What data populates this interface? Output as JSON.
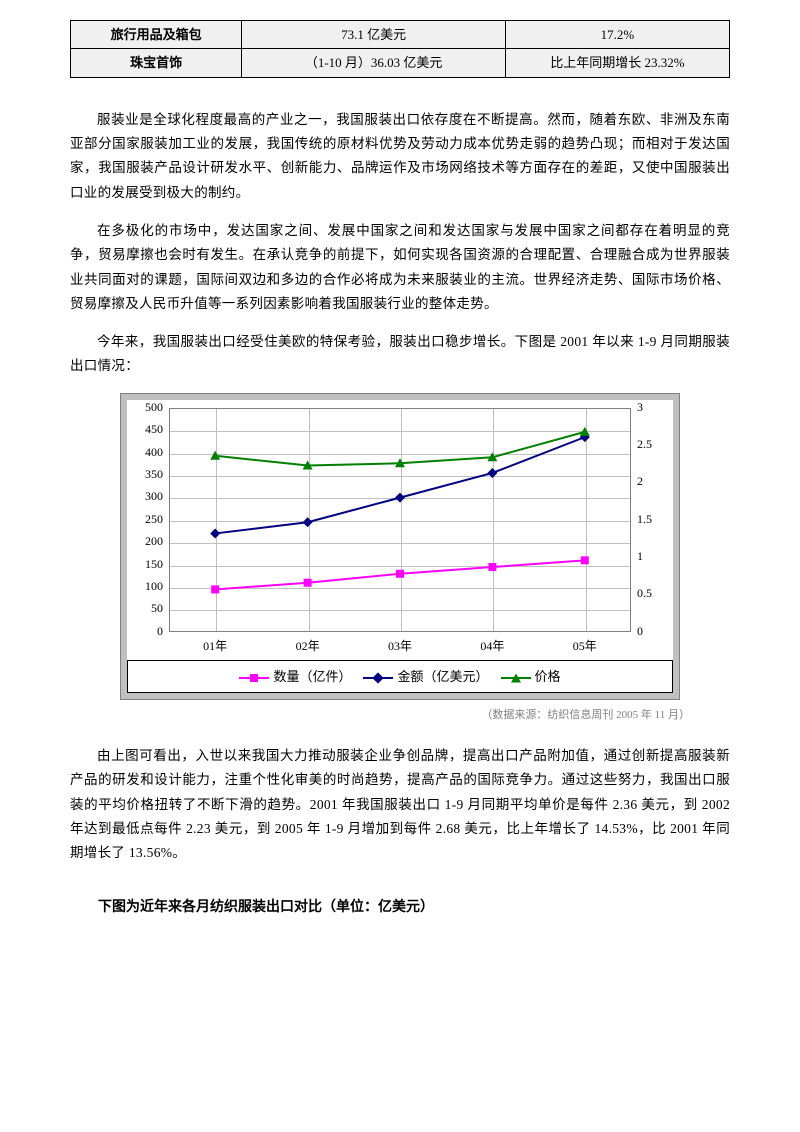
{
  "table": {
    "rows": [
      {
        "c1": "旅行用品及箱包",
        "c2": "73.1 亿美元",
        "c3": "17.2%"
      },
      {
        "c1": "珠宝首饰",
        "c2": "（1-10 月）36.03 亿美元",
        "c3": "比上年同期增长 23.32%"
      }
    ]
  },
  "paragraphs": {
    "p1": "服装业是全球化程度最高的产业之一，我国服装出口依存度在不断提高。然而，随着东欧、非洲及东南亚部分国家服装加工业的发展，我国传统的原材料优势及劳动力成本优势走弱的趋势凸现；而相对于发达国家，我国服装产品设计研发水平、创新能力、品牌运作及市场网络技术等方面存在的差距，又使中国服装出口业的发展受到极大的制约。",
    "p2": "在多极化的市场中，发达国家之间、发展中国家之间和发达国家与发展中国家之间都存在着明显的竞争，贸易摩擦也会时有发生。在承认竞争的前提下，如何实现各国资源的合理配置、合理融合成为世界服装业共同面对的课题，国际间双边和多边的合作必将成为未来服装业的主流。世界经济走势、国际市场价格、贸易摩擦及人民币升值等一系列因素影响着我国服装行业的整体走势。",
    "p3": "今年来，我国服装出口经受住美欧的特保考验，服装出口稳步增长。下图是 2001 年以来 1-9 月同期服装出口情况：",
    "p4": "由上图可看出，入世以来我国大力推动服装企业争创品牌，提高出口产品附加值，通过创新提高服装新产品的研发和设计能力，注重个性化审美的时尚趋势，提高产品的国际竞争力。通过这些努力，我国出口服装的平均价格扭转了不断下滑的趋势。2001 年我国服装出口 1-9 月同期平均单价是每件 2.36 美元，到 2002 年达到最低点每件 2.23 美元，到 2005 年 1-9 月增加到每件 2.68 美元，比上年增长了 14.53%，比 2001 年同期增长了 13.56%。"
  },
  "source_note": "（数据来源：纺织信息周刊 2005 年 11 月）",
  "bold_heading": "下图为近年来各月纺织服装出口对比（单位：亿美元）",
  "chart": {
    "type": "line-dual-axis",
    "background_color": "#c0c0c0",
    "plot_bg": "#ffffff",
    "grid_color": "#c0c0c0",
    "border_color": "#808080",
    "x_labels": [
      "01年",
      "02年",
      "03年",
      "04年",
      "05年"
    ],
    "y_left": {
      "min": 0,
      "max": 500,
      "step": 50
    },
    "y_right": {
      "min": 0,
      "max": 3,
      "step": 0.5
    },
    "series": [
      {
        "name": "数量（亿件）",
        "axis": "left",
        "color": "#ff00ff",
        "marker": "square",
        "values": [
          95,
          110,
          130,
          145,
          160
        ]
      },
      {
        "name": "金额（亿美元）",
        "axis": "left",
        "color": "#000080",
        "marker": "diamond",
        "values": [
          220,
          245,
          300,
          355,
          435
        ]
      },
      {
        "name": "价格",
        "axis": "right",
        "color": "#008000",
        "marker": "triangle",
        "values": [
          2.36,
          2.23,
          2.26,
          2.34,
          2.68
        ]
      }
    ],
    "legend_labels": [
      "数量（亿件）",
      "金额（亿美元）",
      "价格"
    ]
  }
}
